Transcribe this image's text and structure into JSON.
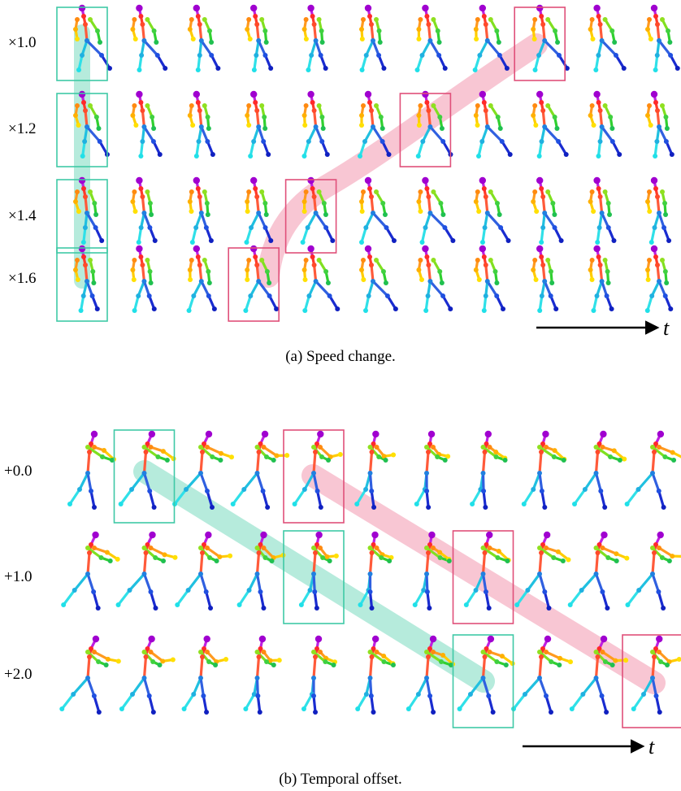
{
  "panel_a": {
    "caption": "(a) Speed change.",
    "axis_label": "t",
    "rows": [
      "×1.0",
      "×1.2",
      "×1.4",
      "×1.6"
    ],
    "frames_per_row": 11,
    "pose_style": "stand",
    "teal_boxes": [
      [
        0,
        0
      ],
      [
        1,
        0
      ],
      [
        2,
        0
      ],
      [
        3,
        0
      ]
    ],
    "pink_boxes": [
      [
        0,
        8
      ],
      [
        1,
        6
      ],
      [
        2,
        4
      ],
      [
        3,
        3
      ]
    ]
  },
  "panel_b": {
    "caption": "(b) Temporal offset.",
    "axis_label": "t",
    "rows": [
      "+0.0",
      "+1.0",
      "+2.0"
    ],
    "frames_per_row": 11,
    "pose_style": "walk",
    "teal_boxes": [
      [
        0,
        1
      ],
      [
        1,
        4
      ],
      [
        2,
        7
      ]
    ],
    "pink_boxes": [
      [
        0,
        4
      ],
      [
        1,
        7
      ],
      [
        2,
        10
      ]
    ]
  },
  "colors": {
    "teal_box": "#3fc9a6",
    "pink_box": "#e0507a",
    "teal_trail": "#a9e8d6",
    "pink_trail": "#f7bccb"
  }
}
